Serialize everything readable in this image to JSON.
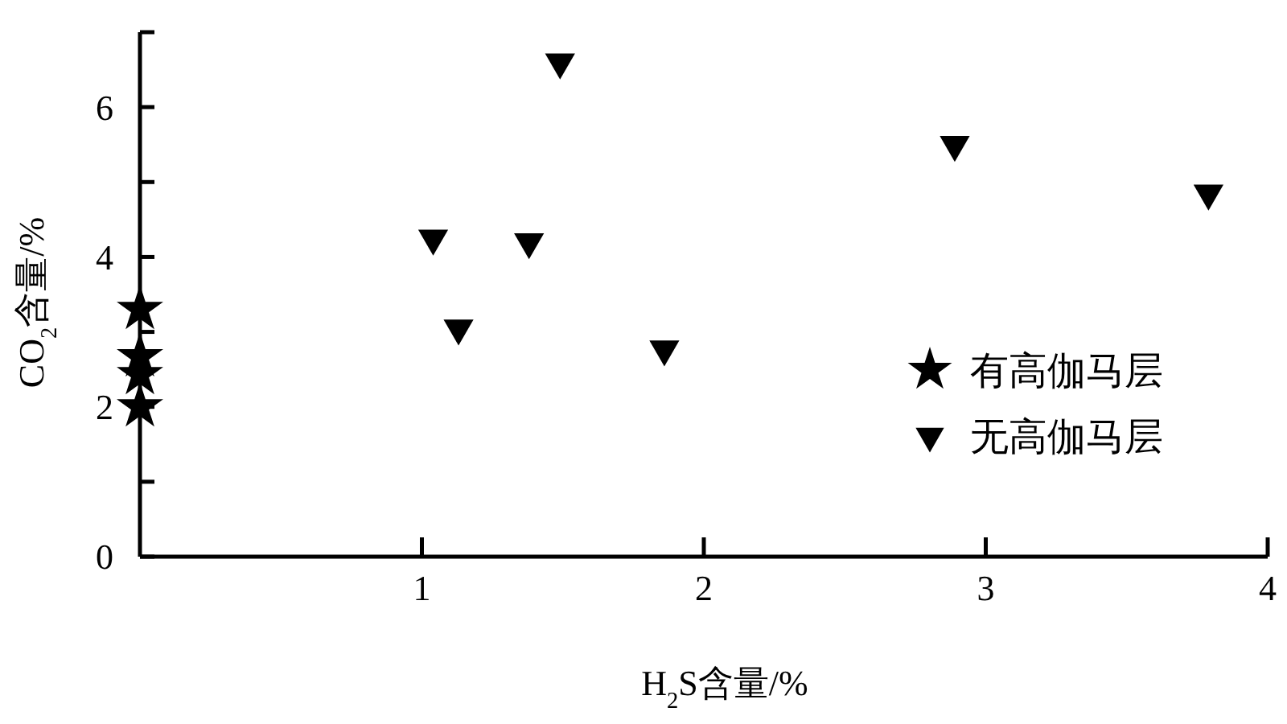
{
  "chart_data": {
    "type": "scatter",
    "xlabel": "H$_{2}$S含量/%",
    "ylabel": "CO$_{2}$含量/%",
    "xlim": [
      0,
      4
    ],
    "xticks": [
      1,
      2,
      3,
      4
    ],
    "ylim": [
      0,
      7
    ],
    "yticks": [
      0,
      {
        "value": 1,
        "label": null
      },
      2,
      {
        "value": 3,
        "label": null
      },
      4,
      {
        "value": 5,
        "label": null
      },
      6,
      {
        "value": 7,
        "label": null
      }
    ],
    "legend": "right",
    "grid": false,
    "series": [
      {
        "name": "有高伽马层",
        "color": "#000000",
        "marker": "star",
        "x": [
          0,
          0,
          0,
          0
        ],
        "values": [
          3.3,
          2.67,
          2.43,
          2.0
        ]
      },
      {
        "name": "无高伽马层",
        "color": "#000000",
        "marker": "triangle",
        "x": [
          1.04,
          1.13,
          1.38,
          1.49,
          1.86,
          2.89,
          3.79
        ],
        "values": [
          4.25,
          3.05,
          4.2,
          6.6,
          2.77,
          5.5,
          4.85
        ]
      }
    ]
  }
}
